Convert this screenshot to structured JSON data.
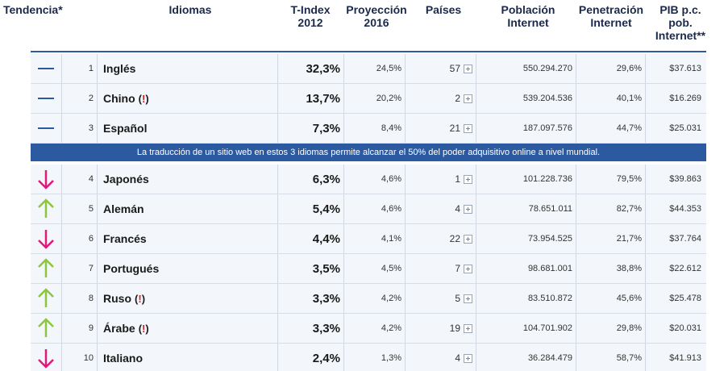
{
  "headers": {
    "tendencia": "Tendencia*",
    "idiomas": "Idiomas",
    "tindex": [
      "T-Index",
      "2012"
    ],
    "proyeccion": [
      "Proyección",
      "2016"
    ],
    "paises": "Países",
    "poblacion": [
      "Población",
      "Internet"
    ],
    "penetracion": [
      "Penetración",
      "Internet"
    ],
    "pib": [
      "PIB p.c.",
      "pob.",
      "Internet**"
    ]
  },
  "banner": "La traducción de un sitio web en estos 3 idiomas permite alcanzar el 50% del poder adquisitivo online a nivel mundial.",
  "rows": [
    {
      "trend": "flat",
      "rank": "1",
      "lang": "Inglés",
      "flag": "",
      "tindex": "32,3%",
      "proj": "24,5%",
      "paises": "57",
      "pob": "550.294.270",
      "pen": "29,6%",
      "pib": "$37.613"
    },
    {
      "trend": "flat",
      "rank": "2",
      "lang": "Chino",
      "flag": "(!)",
      "tindex": "13,7%",
      "proj": "20,2%",
      "paises": "2",
      "pob": "539.204.536",
      "pen": "40,1%",
      "pib": "$16.269"
    },
    {
      "trend": "flat",
      "rank": "3",
      "lang": "Español",
      "flag": "",
      "tindex": "7,3%",
      "proj": "8,4%",
      "paises": "21",
      "pob": "187.097.576",
      "pen": "44,7%",
      "pib": "$25.031"
    },
    {
      "trend": "down",
      "rank": "4",
      "lang": "Japonés",
      "flag": "",
      "tindex": "6,3%",
      "proj": "4,6%",
      "paises": "1",
      "pob": "101.228.736",
      "pen": "79,5%",
      "pib": "$39.863"
    },
    {
      "trend": "up",
      "rank": "5",
      "lang": "Alemán",
      "flag": "",
      "tindex": "5,4%",
      "proj": "4,6%",
      "paises": "4",
      "pob": "78.651.011",
      "pen": "82,7%",
      "pib": "$44.353"
    },
    {
      "trend": "down",
      "rank": "6",
      "lang": "Francés",
      "flag": "",
      "tindex": "4,4%",
      "proj": "4,1%",
      "paises": "22",
      "pob": "73.954.525",
      "pen": "21,7%",
      "pib": "$37.764"
    },
    {
      "trend": "up",
      "rank": "7",
      "lang": "Portugués",
      "flag": "",
      "tindex": "3,5%",
      "proj": "4,5%",
      "paises": "7",
      "pob": "98.681.001",
      "pen": "38,8%",
      "pib": "$22.612"
    },
    {
      "trend": "up",
      "rank": "8",
      "lang": "Ruso",
      "flag": "(!)",
      "tindex": "3,3%",
      "proj": "4,2%",
      "paises": "5",
      "pob": "83.510.872",
      "pen": "45,6%",
      "pib": "$25.478"
    },
    {
      "trend": "up",
      "rank": "9",
      "lang": "Árabe",
      "flag": "(!)",
      "tindex": "3,3%",
      "proj": "4,2%",
      "paises": "19",
      "pob": "104.701.902",
      "pen": "29,8%",
      "pib": "$20.031"
    },
    {
      "trend": "down",
      "rank": "10",
      "lang": "Italiano",
      "flag": "",
      "tindex": "2,4%",
      "proj": "1,3%",
      "paises": "4",
      "pob": "36.284.479",
      "pen": "58,7%",
      "pib": "$41.913"
    }
  ],
  "trend_icons": {
    "flat": "flat-dash-icon",
    "up": "arrow-up-icon",
    "down": "arrow-down-icon"
  },
  "colors": {
    "accent": "#2c5aa0",
    "up": "#8cc63f",
    "down": "#e0197d",
    "flag": "#d21f1f"
  }
}
